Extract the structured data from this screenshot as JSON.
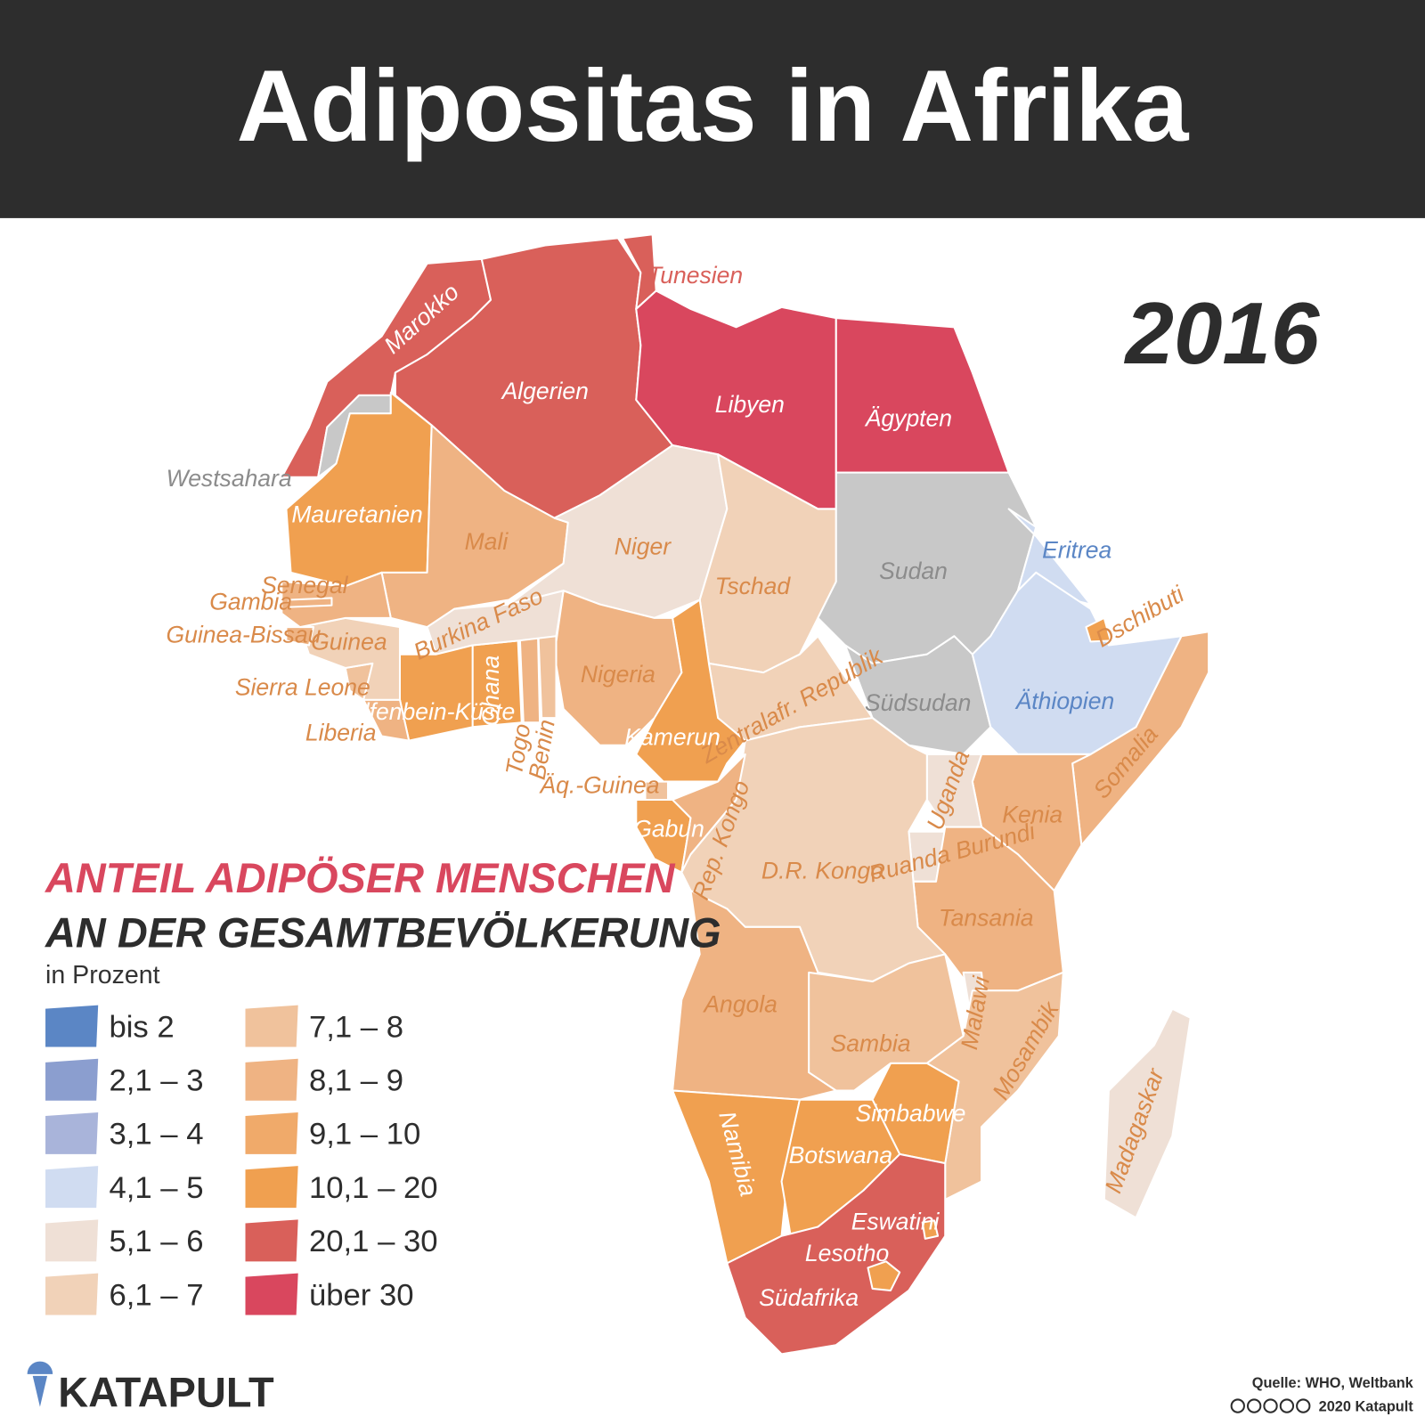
{
  "title": "Adipositas in Afrika",
  "year": "2016",
  "legend": {
    "title": "ANTEIL ADIPÖSER MENSCHEN",
    "subtitle": "AN DER GESAMTBEVÖLKERUNG",
    "unit": "in Prozent",
    "classes": [
      {
        "label": "bis 2",
        "color": "#5b86c5"
      },
      {
        "label": "2,1 – 3",
        "color": "#8b9ecf"
      },
      {
        "label": "3,1 – 4",
        "color": "#a9b4da"
      },
      {
        "label": "4,1 – 5",
        "color": "#d0dcf1"
      },
      {
        "label": "5,1 – 6",
        "color": "#efe0d6"
      },
      {
        "label": "6,1 – 7",
        "color": "#f1d2b8"
      },
      {
        "label": "7,1 – 8",
        "color": "#f0c29c"
      },
      {
        "label": "8,1 – 9",
        "color": "#efb383"
      },
      {
        "label": "9,1 – 10",
        "color": "#f0aa6a"
      },
      {
        "label": "10,1 – 20",
        "color": "#f0a050"
      },
      {
        "label": "20,1 – 30",
        "color": "#d9605a"
      },
      {
        "label": "über 30",
        "color": "#d9475e"
      }
    ]
  },
  "countries": [
    {
      "name": "Marokko",
      "color": "#d9605a",
      "text_color": "#ffffff"
    },
    {
      "name": "Westsahara",
      "color": "#c8c8c8",
      "text_color": "#8c8c8c"
    },
    {
      "name": "Algerien",
      "color": "#d9605a",
      "text_color": "#ffffff"
    },
    {
      "name": "Tunesien",
      "color": "#d9605a",
      "text_color": "#d9605a"
    },
    {
      "name": "Libyen",
      "color": "#d9475e",
      "text_color": "#ffffff"
    },
    {
      "name": "Ägypten",
      "color": "#d9475e",
      "text_color": "#ffffff"
    },
    {
      "name": "Mauretanien",
      "color": "#f0a050",
      "text_color": "#ffffff"
    },
    {
      "name": "Mali",
      "color": "#efb383",
      "text_color": "#d98a4a"
    },
    {
      "name": "Niger",
      "color": "#efe0d6",
      "text_color": "#d98a4a"
    },
    {
      "name": "Tschad",
      "color": "#f1d2b8",
      "text_color": "#d98a4a"
    },
    {
      "name": "Sudan",
      "color": "#c8c8c8",
      "text_color": "#8c8c8c"
    },
    {
      "name": "Südsudan",
      "color": "#c8c8c8",
      "text_color": "#8c8c8c"
    },
    {
      "name": "Eritrea",
      "color": "#d0dcf1",
      "text_color": "#5b86c5"
    },
    {
      "name": "Äthiopien",
      "color": "#d0dcf1",
      "text_color": "#5b86c5"
    },
    {
      "name": "Dschibuti",
      "color": "#f0a050",
      "text_color": "#d98a4a"
    },
    {
      "name": "Somalia",
      "color": "#efb383",
      "text_color": "#d98a4a"
    },
    {
      "name": "Kenia",
      "color": "#efb383",
      "text_color": "#d98a4a"
    },
    {
      "name": "Uganda",
      "color": "#efe0d6",
      "text_color": "#d98a4a"
    },
    {
      "name": "Ruanda Burundi",
      "color": "#efe0d6",
      "text_color": "#d98a4a"
    },
    {
      "name": "Tansania",
      "color": "#efb383",
      "text_color": "#d98a4a"
    },
    {
      "name": "Zentralafr. Republik",
      "color": "#f1d2b8",
      "text_color": "#d98a4a"
    },
    {
      "name": "D.R. Kongo",
      "color": "#f1d2b8",
      "text_color": "#d98a4a"
    },
    {
      "name": "Kamerun",
      "color": "#f0a050",
      "text_color": "#ffffff"
    },
    {
      "name": "Nigeria",
      "color": "#efb383",
      "text_color": "#d98a4a"
    },
    {
      "name": "Benin",
      "color": "#f0c29c",
      "text_color": "#d98a4a"
    },
    {
      "name": "Togo",
      "color": "#efb383",
      "text_color": "#d98a4a"
    },
    {
      "name": "Ghana",
      "color": "#f0a050",
      "text_color": "#ffffff"
    },
    {
      "name": "Burkina Faso",
      "color": "#efe0d6",
      "text_color": "#d98a4a"
    },
    {
      "name": "Elfenbein-Küste",
      "color": "#f0a050",
      "text_color": "#ffffff"
    },
    {
      "name": "Liberia",
      "color": "#efb383",
      "text_color": "#d98a4a"
    },
    {
      "name": "Sierra Leone",
      "color": "#f0c29c",
      "text_color": "#d98a4a"
    },
    {
      "name": "Guinea",
      "color": "#f1d2b8",
      "text_color": "#d98a4a"
    },
    {
      "name": "Guinea-Bissau",
      "color": "#efb383",
      "text_color": "#d98a4a"
    },
    {
      "name": "Senegal",
      "color": "#efb383",
      "text_color": "#d98a4a"
    },
    {
      "name": "Gambia",
      "color": "#efb383",
      "text_color": "#d98a4a"
    },
    {
      "name": "Äq.-Guinea",
      "color": "#f0c29c",
      "text_color": "#d98a4a"
    },
    {
      "name": "Gabun",
      "color": "#f0a050",
      "text_color": "#ffffff"
    },
    {
      "name": "Rep. Kongo",
      "color": "#efb383",
      "text_color": "#d98a4a"
    },
    {
      "name": "Angola",
      "color": "#efb383",
      "text_color": "#d98a4a"
    },
    {
      "name": "Sambia",
      "color": "#f0c29c",
      "text_color": "#d98a4a"
    },
    {
      "name": "Malawi",
      "color": "#efe0d6",
      "text_color": "#d98a4a"
    },
    {
      "name": "Mosambik",
      "color": "#f0c29c",
      "text_color": "#d98a4a"
    },
    {
      "name": "Simbabwe",
      "color": "#f0a050",
      "text_color": "#ffffff"
    },
    {
      "name": "Namibia",
      "color": "#f0a050",
      "text_color": "#ffffff"
    },
    {
      "name": "Botswana",
      "color": "#f0a050",
      "text_color": "#ffffff"
    },
    {
      "name": "Südafrika",
      "color": "#d9605a",
      "text_color": "#ffffff"
    },
    {
      "name": "Lesotho",
      "color": "#f0a050",
      "text_color": "#ffffff"
    },
    {
      "name": "Eswatini",
      "color": "#f0a050",
      "text_color": "#ffffff"
    },
    {
      "name": "Madagaskar",
      "color": "#efe0d6",
      "text_color": "#d98a4a"
    }
  ],
  "brand": "KATAPULT",
  "source": "Quelle: WHO, Weltbank",
  "copyright": "2020 Katapult"
}
